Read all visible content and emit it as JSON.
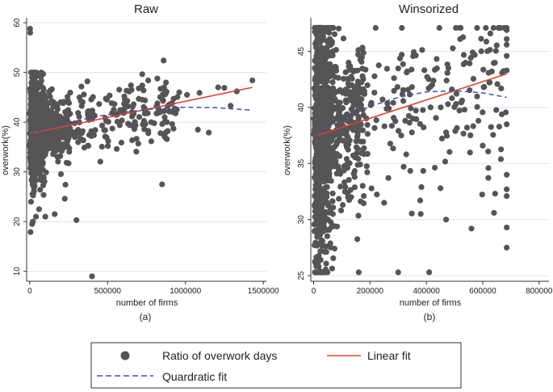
{
  "chart_data": [
    {
      "type": "scatter",
      "title": "Raw",
      "panel_label": "(a)",
      "xlabel": "number of firms",
      "ylabel": "overwork(%)",
      "xlim": [
        -20000,
        1520000
      ],
      "ylim": [
        8,
        61
      ],
      "xticks": [
        0,
        500000,
        1000000,
        1500000
      ],
      "xtick_labels": [
        "0",
        "500000",
        "1000000",
        "1500000"
      ],
      "yticks": [
        10,
        20,
        30,
        40,
        50,
        60
      ],
      "ytick_labels": [
        "10",
        "20",
        "30",
        "40",
        "50",
        "60"
      ],
      "linear_fit": {
        "x": [
          0,
          1430000
        ],
        "y": [
          37.7,
          47.0
        ]
      },
      "quadratic_fit": {
        "x": [
          0,
          200000,
          400000,
          600000,
          800000,
          1000000,
          1200000,
          1430000
        ],
        "y": [
          37.6,
          39.5,
          41.0,
          42.0,
          42.7,
          43.0,
          42.9,
          42.4
        ]
      },
      "outliers": {
        "x": [
          2000,
          3000,
          300000,
          400000,
          860000,
          850000,
          1250000,
          1330000,
          1430000,
          1090000,
          1080000,
          1150000,
          5000,
          15000,
          8000,
          20000,
          40000,
          60000,
          100000,
          160000,
          225000,
          290000,
          370000,
          650000,
          700000,
          960000,
          1010000,
          1210000,
          1290000
        ],
        "y": [
          58.8,
          58.0,
          20.3,
          9.0,
          52.4,
          27.5,
          46.9,
          46.2,
          48.4,
          45.9,
          38.5,
          37.9,
          17.9,
          19.5,
          24.0,
          20.0,
          21.0,
          22.5,
          21.0,
          21.5,
          24.6,
          37.0,
          48.2,
          47.4,
          44.7,
          46.0,
          45.5,
          47.0,
          43.3
        ]
      }
    },
    {
      "type": "scatter",
      "title": "Winsorized",
      "panel_label": "(b)",
      "xlabel": "number of firms",
      "ylabel": "overwork(%)",
      "xlim": [
        -10000,
        835000
      ],
      "ylim": [
        24.5,
        48
      ],
      "xticks": [
        0,
        200000,
        400000,
        600000,
        800000
      ],
      "xtick_labels": [
        "0",
        "200000",
        "400000",
        "600000",
        "800000"
      ],
      "yticks": [
        25,
        30,
        35,
        40,
        45
      ],
      "ytick_labels": [
        "25",
        "30",
        "35",
        "40",
        "45"
      ],
      "linear_fit": {
        "x": [
          0,
          685000
        ],
        "y": [
          37.4,
          43.0
        ]
      },
      "quadratic_fit": {
        "x": [
          0,
          100000,
          200000,
          300000,
          400000,
          500000,
          600000,
          685000
        ],
        "y": [
          37.3,
          38.9,
          40.1,
          40.9,
          41.4,
          41.5,
          41.3,
          40.9
        ]
      },
      "outliers": {
        "x": [
          160000,
          300000,
          410000,
          470000,
          560000,
          685000,
          685000,
          640000,
          685000,
          685000,
          685000,
          685000,
          685000,
          685000,
          685000,
          685000,
          685000,
          685000,
          580000,
          520000,
          600000,
          380000,
          450000,
          250000,
          620000
        ],
        "y": [
          25.3,
          25.3,
          25.3,
          30.0,
          29.2,
          27.5,
          29.3,
          30.6,
          32.1,
          32.7,
          34.0,
          46.1,
          46.9,
          47.1,
          45.6,
          44.6,
          43.3,
          38.5,
          47.1,
          46.1,
          36.6,
          30.5,
          32.8,
          31.5,
          34.6
        ]
      }
    }
  ],
  "legend": {
    "markers": "Ratio of overwork days",
    "linear": "Linear fit",
    "quadratic": "Quardratic fit"
  },
  "colors": {
    "points": "#555555",
    "linear": "#e0402e",
    "quadratic": "#3d52a8",
    "grid": "#dde3ea",
    "axis": "#333333"
  }
}
